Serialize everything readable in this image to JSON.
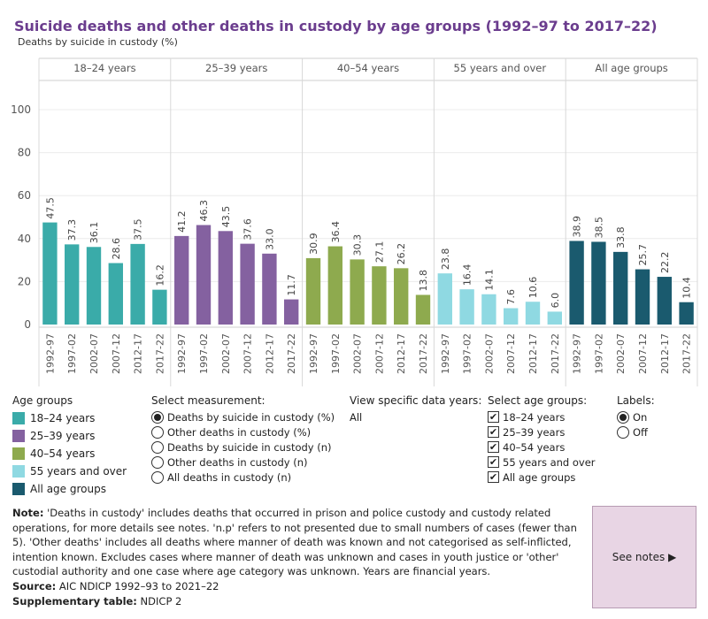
{
  "title": "Suicide deaths and other deaths in custody by age groups (1992–97 to 2017–22)",
  "subtitle": "Deaths by suicide in custody (%)",
  "colors": {
    "18-24": "#3aaba9",
    "25-39": "#8461a0",
    "40-54": "#8eaa4e",
    "55+": "#8fd9e2",
    "all": "#1a5a6e"
  },
  "chart_data": {
    "type": "bar",
    "ylabel": "Deaths by suicide in custody (%)",
    "ylim": [
      0,
      100
    ],
    "yticks": [
      0,
      20,
      40,
      60,
      80,
      100
    ],
    "grid": true,
    "categories": [
      "1992-97",
      "1997-02",
      "2002-07",
      "2007-12",
      "2012-17",
      "2017-22"
    ],
    "panels": [
      {
        "name": "18–24 years",
        "color": "#3aaba9",
        "values": [
          47.5,
          37.3,
          36.1,
          28.6,
          37.5,
          16.2
        ],
        "labels": [
          "47.5",
          "37.3",
          "36.1",
          "28.6",
          "37.5",
          "16.2"
        ]
      },
      {
        "name": "25–39 years",
        "color": "#8461a0",
        "values": [
          41.2,
          46.3,
          43.5,
          37.6,
          33.0,
          11.7
        ],
        "labels": [
          "41.2",
          "46.3",
          "43.5",
          "37.6",
          "33.0",
          "11.7"
        ]
      },
      {
        "name": "40–54 years",
        "color": "#8eaa4e",
        "values": [
          30.9,
          36.4,
          30.3,
          27.1,
          26.2,
          13.8
        ],
        "labels": [
          "30.9",
          "36.4",
          "30.3",
          "27.1",
          "26.2",
          "13.8"
        ]
      },
      {
        "name": "55 years and over",
        "color": "#8fd9e2",
        "values": [
          23.8,
          16.4,
          14.1,
          7.6,
          10.6,
          6.0
        ],
        "labels": [
          "23.8",
          "16.4",
          "14.1",
          "7.6",
          "10.6",
          "6.0"
        ]
      },
      {
        "name": "All age groups",
        "color": "#1a5a6e",
        "values": [
          38.9,
          38.5,
          33.8,
          25.7,
          22.2,
          10.4
        ],
        "labels": [
          "38.9",
          "38.5",
          "33.8",
          "25.7",
          "22.2",
          "10.4"
        ]
      }
    ]
  },
  "legend": {
    "header": "Age groups",
    "items": [
      {
        "label": "18–24 years",
        "color": "#3aaba9"
      },
      {
        "label": "25–39 years",
        "color": "#8461a0"
      },
      {
        "label": "40–54 years",
        "color": "#8eaa4e"
      },
      {
        "label": "55 years and over",
        "color": "#8fd9e2"
      },
      {
        "label": "All age groups",
        "color": "#1a5a6e"
      }
    ]
  },
  "measurement": {
    "header": "Select measurement:",
    "options": [
      {
        "label": "Deaths by suicide in custody (%)",
        "selected": true
      },
      {
        "label": "Other deaths in custody (%)",
        "selected": false
      },
      {
        "label": "Deaths by suicide in custody (n)",
        "selected": false
      },
      {
        "label": "Other deaths in custody (n)",
        "selected": false
      },
      {
        "label": "All deaths in custody (n)",
        "selected": false
      }
    ]
  },
  "years": {
    "header": "View specific data years:",
    "value": "All"
  },
  "age_select": {
    "header": "Select age groups:",
    "options": [
      {
        "label": "18–24 years",
        "checked": true
      },
      {
        "label": "25–39 years",
        "checked": true
      },
      {
        "label": "40–54 years",
        "checked": true
      },
      {
        "label": "55 years and over",
        "checked": true
      },
      {
        "label": "All age groups",
        "checked": true
      }
    ]
  },
  "labels_ctl": {
    "header": "Labels:",
    "options": [
      {
        "label": "On",
        "selected": true
      },
      {
        "label": "Off",
        "selected": false
      }
    ]
  },
  "note": {
    "note_label": "Note:",
    "note_text": " 'Deaths in custody' includes deaths that occurred in prison and police custody and custody related operations, for more details see notes. 'n.p' refers to not presented due to small numbers of cases (fewer than 5). 'Other deaths' includes all deaths where manner of death was known and not categorised as self-inflicted, intention known. Excludes cases where manner of death was unknown and cases in youth justice or 'other' custodial authority and one case where age category was unknown. Years are financial years.",
    "source_label": "Source:",
    "source_text": " AIC NDICP 1992–93 to 2021–22",
    "supp_label": "Supplementary table:",
    "supp_text": " NDICP 2"
  },
  "see_notes": {
    "label": "See notes",
    "arrow": "▶"
  }
}
